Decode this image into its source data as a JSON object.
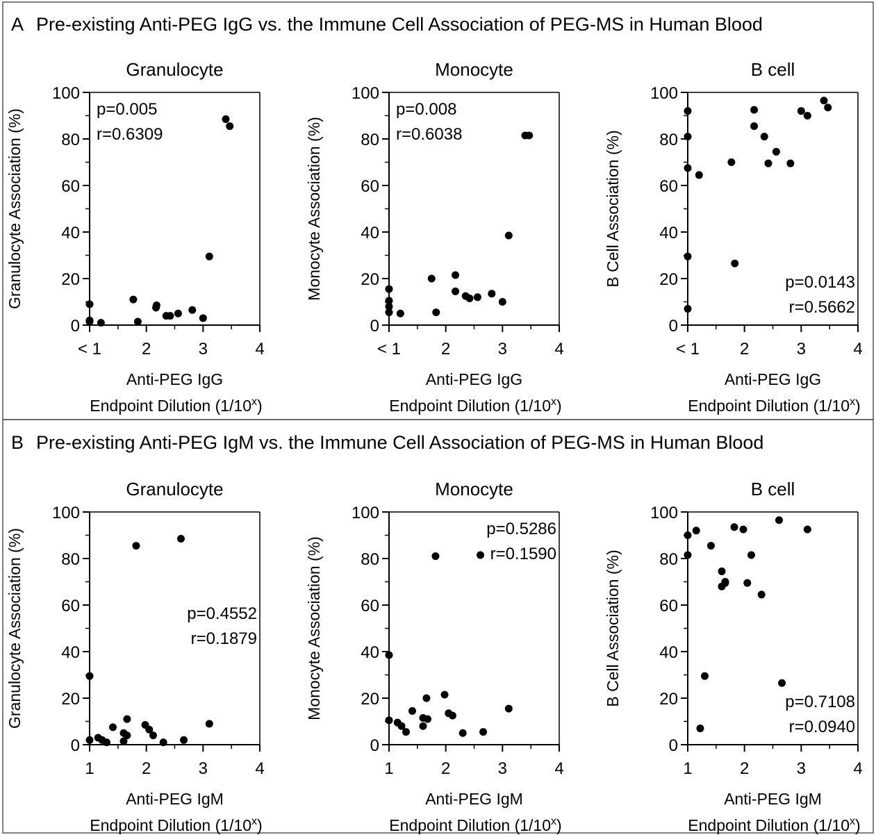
{
  "panels": [
    {
      "letter": "A",
      "title": "Pre-existing Anti-PEG IgG vs. the Immune Cell Association of PEG-MS in Human Blood"
    },
    {
      "letter": "B",
      "title": "Pre-existing Anti-PEG IgM vs. the Immune Cell Association of PEG-MS in Human Blood"
    }
  ],
  "chart_data": [
    {
      "type": "scatter",
      "panel": "A",
      "title": "Granulocyte",
      "xlabel": "Anti-PEG IgG",
      "xlabel2": "Endpoint Dilution (1/10",
      "xlabel_sup": "x",
      "xlabel_close": ")",
      "ylabel": "Granulocyte Association (%)",
      "xlim": [
        1,
        4
      ],
      "ylim": [
        0,
        100
      ],
      "x_ticks": [
        "< 1",
        "2",
        "3",
        "4"
      ],
      "y_ticks": [
        "0",
        "20",
        "40",
        "60",
        "80",
        "100"
      ],
      "stats": [
        "p=0.005",
        "r=0.6309"
      ],
      "stats_position": "top-left",
      "points": [
        [
          1,
          9
        ],
        [
          1,
          2
        ],
        [
          1,
          1.5
        ],
        [
          1.2,
          1
        ],
        [
          1.77,
          11
        ],
        [
          1.85,
          1.5
        ],
        [
          2.17,
          7.5
        ],
        [
          2.18,
          8.5
        ],
        [
          2.35,
          4
        ],
        [
          2.42,
          4
        ],
        [
          2.56,
          5
        ],
        [
          2.81,
          6.5
        ],
        [
          3.0,
          3
        ],
        [
          3.11,
          29.5
        ],
        [
          3.4,
          88.5
        ],
        [
          3.47,
          85.5
        ]
      ]
    },
    {
      "type": "scatter",
      "panel": "A",
      "title": "Monocyte",
      "xlabel": "Anti-PEG IgG",
      "xlabel2": "Endpoint Dilution (1/10",
      "xlabel_sup": "x",
      "xlabel_close": ")",
      "ylabel": "Monocyte Association (%)",
      "xlim": [
        1,
        4
      ],
      "ylim": [
        0,
        100
      ],
      "x_ticks": [
        "< 1",
        "2",
        "3",
        "4"
      ],
      "y_ticks": [
        "0",
        "20",
        "40",
        "60",
        "80",
        "100"
      ],
      "stats": [
        "p=0.008",
        "r=0.6038"
      ],
      "stats_position": "top-left",
      "points": [
        [
          1,
          15.5
        ],
        [
          1,
          10.5
        ],
        [
          1,
          8
        ],
        [
          1,
          5.5
        ],
        [
          1.2,
          5
        ],
        [
          1.75,
          20
        ],
        [
          1.83,
          5.5
        ],
        [
          2.17,
          21.5
        ],
        [
          2.17,
          14.5
        ],
        [
          2.35,
          12.5
        ],
        [
          2.42,
          11.5
        ],
        [
          2.56,
          12
        ],
        [
          2.81,
          13.5
        ],
        [
          3.0,
          10
        ],
        [
          3.11,
          38.5
        ],
        [
          3.4,
          81.5
        ],
        [
          3.47,
          81.5
        ]
      ]
    },
    {
      "type": "scatter",
      "panel": "A",
      "title": "B cell",
      "xlabel": "Anti-PEG IgG",
      "xlabel2": "Endpoint Dilution (1/10",
      "xlabel_sup": "x",
      "xlabel_close": ")",
      "ylabel": "B Cell Association (%)",
      "xlim": [
        1,
        4
      ],
      "ylim": [
        0,
        100
      ],
      "x_ticks": [
        "< 1",
        "2",
        "3",
        "4"
      ],
      "y_ticks": [
        "0",
        "20",
        "40",
        "60",
        "80",
        "100"
      ],
      "stats": [
        "p=0.0143",
        "r=0.5662"
      ],
      "stats_position": "bottom-right",
      "points": [
        [
          1,
          92
        ],
        [
          1,
          81
        ],
        [
          1,
          67.5
        ],
        [
          1,
          29.5
        ],
        [
          1,
          7
        ],
        [
          1.2,
          64.5
        ],
        [
          1.77,
          70
        ],
        [
          1.83,
          26.5
        ],
        [
          2.17,
          92.5
        ],
        [
          2.17,
          85.5
        ],
        [
          2.35,
          81
        ],
        [
          2.42,
          69.5
        ],
        [
          2.56,
          74.5
        ],
        [
          2.81,
          69.5
        ],
        [
          3.0,
          92
        ],
        [
          3.11,
          90
        ],
        [
          3.4,
          96.5
        ],
        [
          3.47,
          93.5
        ]
      ]
    },
    {
      "type": "scatter",
      "panel": "B",
      "title": "Granulocyte",
      "xlabel": "Anti-PEG IgM",
      "xlabel2": "Endpoint Dilution (1/10",
      "xlabel_sup": "x",
      "xlabel_close": ")",
      "ylabel": "Granulocyte Association (%)",
      "xlim": [
        1,
        4
      ],
      "ylim": [
        0,
        100
      ],
      "x_ticks": [
        "1",
        "2",
        "3",
        "4"
      ],
      "y_ticks": [
        "0",
        "20",
        "40",
        "60",
        "80",
        "100"
      ],
      "stats": [
        "p=0.4552",
        "r=0.1879"
      ],
      "stats_position": "middle-right",
      "points": [
        [
          1,
          29.5
        ],
        [
          1,
          2
        ],
        [
          1.15,
          3
        ],
        [
          1.22,
          2
        ],
        [
          1.3,
          1
        ],
        [
          1.41,
          7.5
        ],
        [
          1.6,
          5
        ],
        [
          1.6,
          1.5
        ],
        [
          1.66,
          11
        ],
        [
          1.66,
          4
        ],
        [
          1.82,
          85.5
        ],
        [
          1.98,
          8.5
        ],
        [
          2.05,
          6.5
        ],
        [
          2.12,
          4
        ],
        [
          2.3,
          1
        ],
        [
          2.61,
          88.5
        ],
        [
          2.66,
          2
        ],
        [
          3.11,
          9
        ]
      ]
    },
    {
      "type": "scatter",
      "panel": "B",
      "title": "Monocyte",
      "xlabel": "Anti-PEG IgM",
      "xlabel2": "Endpoint Dilution (1/10",
      "xlabel_sup": "x",
      "xlabel_close": ")",
      "ylabel": "Monocyte Association (%)",
      "xlim": [
        1,
        4
      ],
      "ylim": [
        0,
        100
      ],
      "x_ticks": [
        "1",
        "2",
        "3",
        "4"
      ],
      "y_ticks": [
        "0",
        "20",
        "40",
        "60",
        "80",
        "100"
      ],
      "stats": [
        "p=0.5286",
        "r=0.1590"
      ],
      "stats_position": "top-right",
      "points": [
        [
          1,
          38.5
        ],
        [
          1,
          10.5
        ],
        [
          1.15,
          9.5
        ],
        [
          1.22,
          8
        ],
        [
          1.3,
          5.5
        ],
        [
          1.41,
          14.5
        ],
        [
          1.6,
          11.5
        ],
        [
          1.6,
          8
        ],
        [
          1.66,
          20
        ],
        [
          1.68,
          11
        ],
        [
          1.82,
          81
        ],
        [
          1.98,
          21.5
        ],
        [
          2.05,
          13.5
        ],
        [
          2.12,
          12.5
        ],
        [
          2.3,
          5
        ],
        [
          2.61,
          81.5
        ],
        [
          2.66,
          5.5
        ],
        [
          3.11,
          15.5
        ]
      ]
    },
    {
      "type": "scatter",
      "panel": "B",
      "title": "B cell",
      "xlabel": "Anti-PEG IgM",
      "xlabel2": "Endpoint Dilution (1/10",
      "xlabel_sup": "x",
      "xlabel_close": ")",
      "ylabel": "B Cell Association (%)",
      "xlim": [
        1,
        4
      ],
      "ylim": [
        0,
        100
      ],
      "x_ticks": [
        "1",
        "2",
        "3",
        "4"
      ],
      "y_ticks": [
        "0",
        "20",
        "40",
        "60",
        "80",
        "100"
      ],
      "stats": [
        "p=0.7108",
        "r=0.0940"
      ],
      "stats_position": "bottom-right",
      "points": [
        [
          1,
          90
        ],
        [
          1,
          81.5
        ],
        [
          1.15,
          92
        ],
        [
          1.22,
          7
        ],
        [
          1.3,
          29.5
        ],
        [
          1.41,
          85.5
        ],
        [
          1.6,
          74.5
        ],
        [
          1.6,
          68
        ],
        [
          1.66,
          70
        ],
        [
          1.66,
          69.5
        ],
        [
          1.82,
          93.5
        ],
        [
          1.98,
          92.5
        ],
        [
          2.05,
          69.5
        ],
        [
          2.12,
          81.5
        ],
        [
          2.3,
          64.5
        ],
        [
          2.61,
          96.5
        ],
        [
          2.66,
          26.5
        ],
        [
          3.11,
          92.5
        ]
      ]
    }
  ]
}
